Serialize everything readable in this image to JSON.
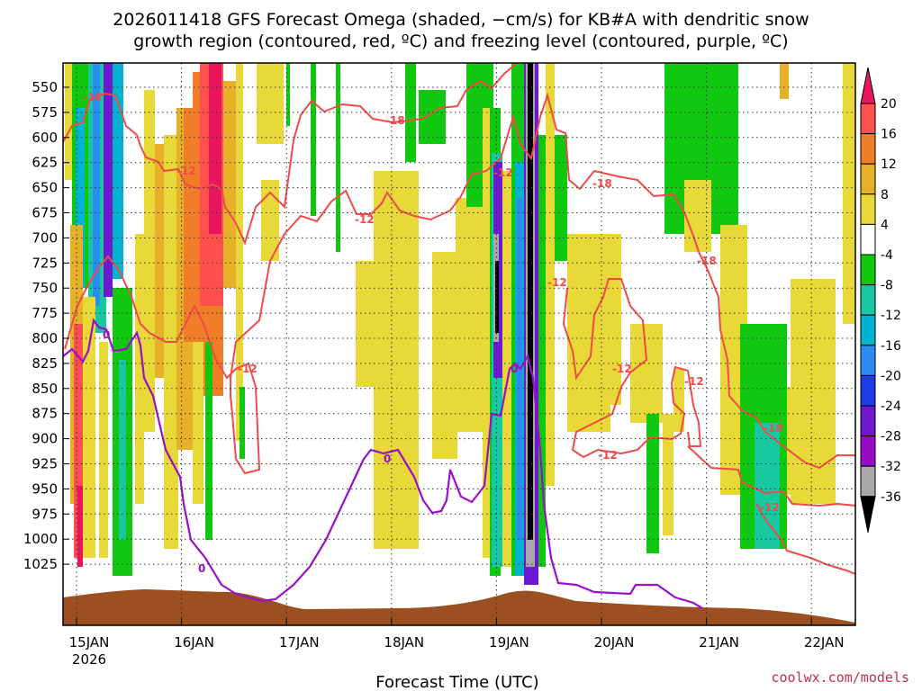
{
  "chart_data": {
    "type": "heatmap",
    "title": {
      "line1": "2026011418 GFS Forecast Omega (shaded, −cm/s) for KB#A with dendritic snow",
      "line2": "growth region (contoured, red, ºC) and freezing level (contoured, purple, ºC)"
    },
    "xlabel": "Forecast Time (UTC)",
    "credit": "coolwx.com/models",
    "x_ticks": [
      "15JAN",
      "16JAN",
      "17JAN",
      "18JAN",
      "19JAN",
      "20JAN",
      "21JAN",
      "22JAN"
    ],
    "x_year_label": "2026",
    "y_ticks": [
      "550",
      "575",
      "600",
      "625",
      "650",
      "675",
      "700",
      "725",
      "750",
      "775",
      "800",
      "825",
      "850",
      "875",
      "900",
      "925",
      "950",
      "975",
      "1000",
      "1025"
    ],
    "yaxis": "pressure (hPa), inverted",
    "grid": true,
    "colorbar": {
      "labels": [
        "20",
        "16",
        "12",
        "8",
        "4",
        "-4",
        "-8",
        "-12",
        "-16",
        "-20",
        "-24",
        "-28",
        "-32",
        "-36"
      ],
      "colors": [
        "#e8175d",
        "#ff5050",
        "#f07e28",
        "#e6b028",
        "#e8d838",
        "#ffffff",
        "#10c810",
        "#18c8a0",
        "#00b4d0",
        "#2a8cf0",
        "#1e3ce6",
        "#6e18d2",
        "#9a08c8",
        "#a8a8a8",
        "#000000"
      ],
      "colors_note": "segments top to bottom: >20 (arrow), 16–20, 12–16, 8–12, 4–8, -4–4, -8–-4, -12–-8, -16–-12, -20–-16, -24–-20, -28–-24, -32–-28, -36–-32, <-36 (arrow)"
    },
    "contour_labels": {
      "red": [
        "-12",
        "-18"
      ],
      "purple": [
        "0"
      ]
    },
    "colors": {
      "dgz_contour": "#f04a4a",
      "freezing_contour": "#9a10c8",
      "terrain": "#9c4f20"
    }
  }
}
